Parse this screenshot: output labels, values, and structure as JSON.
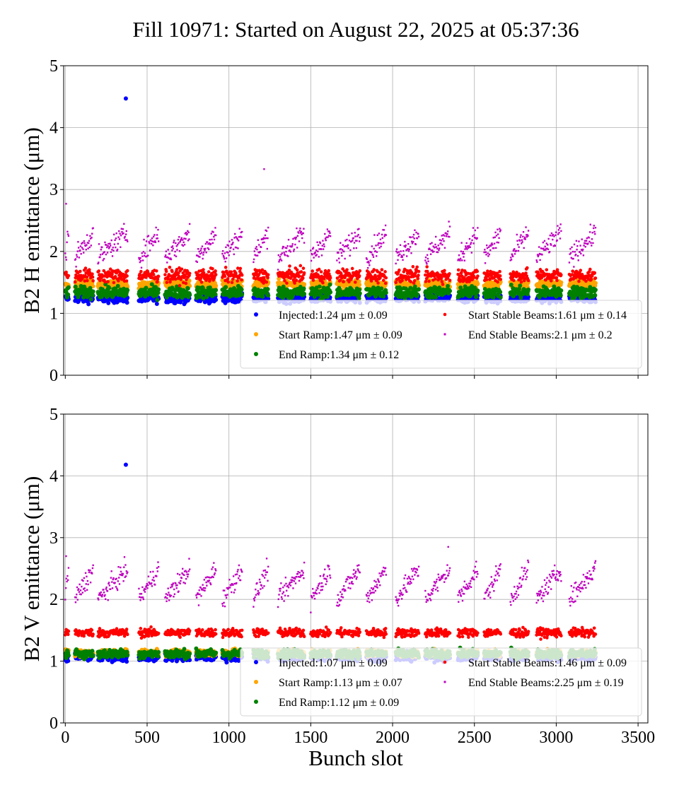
{
  "chart_data": {
    "title": "Fill 10971: Started on August 22, 2025 at 05:37:36",
    "type": "scatter",
    "xlabel": "Bunch slot",
    "xlim": [
      -10,
      3560
    ],
    "xticks": [
      0,
      500,
      1000,
      1500,
      2000,
      2500,
      3000,
      3500
    ],
    "grid": true,
    "trains": [
      [
        0,
        20
      ],
      [
        60,
        170
      ],
      [
        200,
        380
      ],
      [
        450,
        570
      ],
      [
        610,
        760
      ],
      [
        800,
        920
      ],
      [
        960,
        1080
      ],
      [
        1150,
        1240
      ],
      [
        1300,
        1460
      ],
      [
        1500,
        1620
      ],
      [
        1660,
        1800
      ],
      [
        1840,
        1960
      ],
      [
        2020,
        2160
      ],
      [
        2200,
        2350
      ],
      [
        2400,
        2520
      ],
      [
        2560,
        2660
      ],
      [
        2720,
        2830
      ],
      [
        2880,
        3030
      ],
      [
        3080,
        3240
      ]
    ],
    "panels": [
      {
        "ylabel": "B2 H emittance (μm)",
        "ylim": [
          0,
          5
        ],
        "yticks": [
          0,
          1,
          2,
          3,
          4,
          5
        ],
        "legend_position": "lower-right",
        "series": [
          {
            "name": "Injected",
            "label": "Injected:1.24 μm ± 0.09",
            "color": "#0000ff",
            "mean": 1.24,
            "std": 0.09,
            "outliers": [
              [
                370,
                4.47
              ]
            ]
          },
          {
            "name": "Start Ramp",
            "label": "Start Ramp:1.47 μm ± 0.09",
            "color": "#ffa500",
            "mean": 1.47,
            "std": 0.09,
            "outliers": []
          },
          {
            "name": "End Ramp",
            "label": "End Ramp:1.34 μm ± 0.12",
            "color": "#008000",
            "mean": 1.34,
            "std": 0.12,
            "outliers": []
          },
          {
            "name": "Start Stable Beams",
            "label": "Start Stable Beams:1.61 μm ± 0.14",
            "color": "#ff0000",
            "mean": 1.61,
            "std": 0.14,
            "outliers": []
          },
          {
            "name": "End Stable Beams",
            "label": "End Stable Beams:2.1 μm ± 0.2",
            "color": "#bf00bf",
            "mean": 2.1,
            "std": 0.2,
            "train_trend": [
              1.9,
              2.3
            ],
            "outliers": [
              [
                5,
                2.77
              ],
              [
                1215,
                3.33
              ]
            ]
          }
        ]
      },
      {
        "ylabel": "B2 V emittance (μm)",
        "ylim": [
          0,
          5
        ],
        "yticks": [
          0,
          1,
          2,
          3,
          4,
          5
        ],
        "legend_position": "lower-right",
        "series": [
          {
            "name": "Injected",
            "label": "Injected:1.07 μm ± 0.09",
            "color": "#0000ff",
            "mean": 1.07,
            "std": 0.09,
            "outliers": [
              [
                370,
                4.18
              ]
            ]
          },
          {
            "name": "Start Ramp",
            "label": "Start Ramp:1.13 μm ± 0.07",
            "color": "#ffa500",
            "mean": 1.13,
            "std": 0.07,
            "outliers": []
          },
          {
            "name": "End Ramp",
            "label": "End Ramp:1.12 μm ± 0.09",
            "color": "#008000",
            "mean": 1.12,
            "std": 0.09,
            "outliers": []
          },
          {
            "name": "Start Stable Beams",
            "label": "Start Stable Beams:1.46 μm ± 0.09",
            "color": "#ff0000",
            "mean": 1.46,
            "std": 0.09,
            "outliers": []
          },
          {
            "name": "End Stable Beams",
            "label": "End Stable Beams:2.25 μm ± 0.19",
            "color": "#bf00bf",
            "mean": 2.25,
            "std": 0.19,
            "train_trend": [
              2.0,
              2.5
            ],
            "outliers": [
              [
                5,
                2.7
              ],
              [
                2340,
                2.85
              ]
            ]
          }
        ]
      }
    ]
  }
}
